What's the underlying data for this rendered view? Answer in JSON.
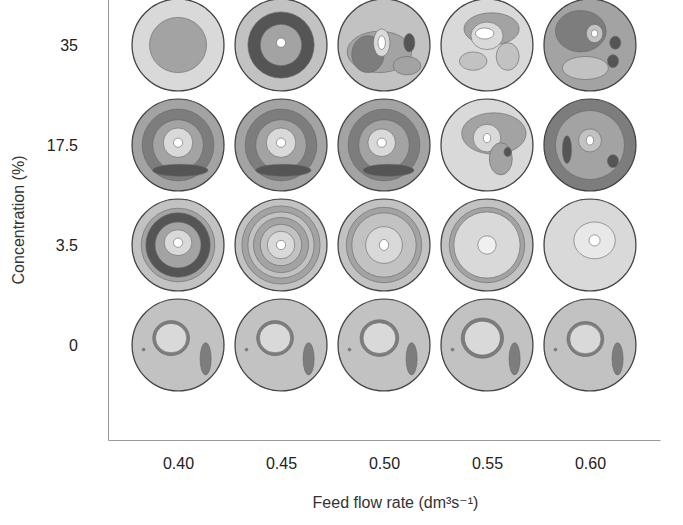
{
  "chart_data": {
    "type": "image_grid",
    "x_label": "Feed flow rate (dm³s⁻¹)",
    "y_label": "Concentration (%)",
    "categories": [
      "0.40",
      "0.45",
      "0.50",
      "0.55",
      "0.60"
    ],
    "y_categories": [
      "0",
      "3.5",
      "17.5",
      "35"
    ]
  }
}
